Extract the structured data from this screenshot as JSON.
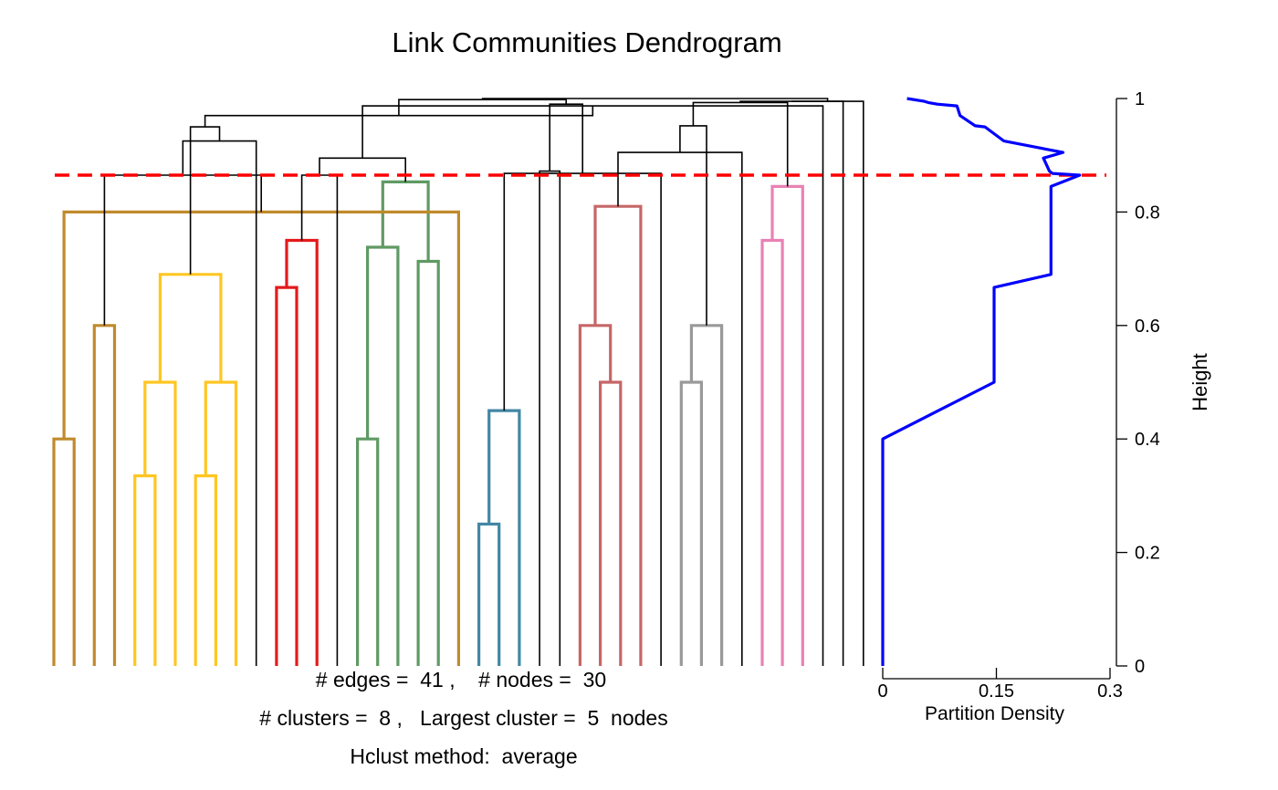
{
  "chart_data": [
    {
      "type": "dendrogram",
      "title": "Link Communities Dendrogram",
      "ylabel": "Height",
      "ylim": [
        0,
        1
      ],
      "yticks": [
        0,
        0.2,
        0.4,
        0.6,
        0.8,
        1
      ],
      "ytick_labels": [
        "0",
        "0.2",
        "0.4",
        "0.6",
        "0.8",
        "1"
      ],
      "cut_height": 0.865,
      "cut_color": "#ff0000",
      "leaf_count": 41,
      "leaf_colors": [
        "#c08a2b",
        "#c08a2b",
        "#c08a2b",
        "#c08a2b",
        "#ffc622",
        "#ffc622",
        "#ffc622",
        "#ffc622",
        "#ffc622",
        "#ffc622",
        "#000000",
        "#e41a1c",
        "#e41a1c",
        "#e41a1c",
        "#000000",
        "#5f9a63",
        "#5f9a63",
        "#5f9a63",
        "#5f9a63",
        "#000000",
        "#000000",
        "#4287a5",
        "#4287a5",
        "#4287a5",
        "#000000",
        "#000000",
        "#c76666",
        "#c76666",
        "#c76666",
        "#000000",
        "#999999",
        "#999999",
        "#999999",
        "#000000",
        "#e882b4",
        "#e882b4",
        "#e882b4",
        "#000000",
        "#000000",
        "#000000",
        "#000000"
      ],
      "merges": [
        [
          0,
          1,
          0.4,
          "#c08a2b"
        ],
        [
          4,
          5,
          0.335,
          "#ffc622"
        ],
        [
          7,
          8,
          0.335,
          "#ffc622"
        ],
        [
          2,
          3,
          0.6,
          "#c08a2b"
        ],
        [
          9,
          "c2",
          0.5,
          "#ffc622"
        ],
        [
          6,
          "c1",
          0.5,
          "#ffc622"
        ],
        [
          "c5",
          "c4",
          0.69,
          "#ffc622"
        ],
        [
          11,
          12,
          0.667,
          "#e41a1c"
        ],
        [
          "c7",
          13,
          0.75,
          "#e41a1c"
        ],
        [
          15,
          16,
          0.4,
          "#5f9a63"
        ],
        [
          "c9",
          17,
          0.738,
          "#5f9a63"
        ],
        [
          18,
          19,
          0.713,
          "#5f9a63"
        ],
        [
          "c10",
          "c11",
          0.853,
          "#5f9a63"
        ],
        [
          "c0",
          20,
          0.8,
          "#c08a2b"
        ],
        [
          21,
          22,
          0.25,
          "#4287a5"
        ],
        [
          "c14",
          23,
          0.45,
          "#4287a5"
        ],
        [
          27,
          28,
          0.5,
          "#c76666"
        ],
        [
          26,
          "c16",
          0.6,
          "#c76666"
        ],
        [
          "c17",
          29,
          0.81,
          "#c76666"
        ],
        [
          31,
          32,
          0.5,
          "#999999"
        ],
        [
          "c19",
          33,
          0.6,
          "#999999"
        ],
        [
          35,
          36,
          0.75,
          "#e882b4"
        ],
        [
          "c21",
          37,
          0.845,
          "#e882b4"
        ],
        [
          "c13",
          "c3",
          0.865,
          "#000000"
        ],
        [
          "c8",
          14,
          0.865,
          "#000000"
        ],
        [
          "c23",
          10,
          0.925,
          "#000000"
        ],
        [
          "c24",
          "c12",
          0.895,
          "#000000"
        ],
        [
          24,
          25,
          0.872,
          "#000000"
        ],
        [
          "c15",
          30,
          0.868,
          "#000000"
        ],
        [
          "c18",
          34,
          0.905,
          "#000000"
        ],
        [
          "c26",
          38,
          0.987,
          "#000000"
        ],
        [
          "c25",
          "c6",
          0.95,
          "#000000"
        ],
        [
          "c31",
          "c30",
          0.97,
          "#000000"
        ],
        [
          "c27",
          "c28",
          0.99,
          "#000000"
        ],
        [
          "c29",
          "c20",
          0.952,
          "#000000"
        ],
        [
          "c34",
          "c22",
          0.993,
          "#000000"
        ],
        [
          "c35",
          39,
          0.995,
          "#000000"
        ],
        [
          "c36",
          40,
          0.995,
          "#000000"
        ],
        [
          "c32",
          "c33",
          0.998,
          "#000000"
        ],
        [
          "c38",
          "c37",
          1.0,
          "#000000"
        ]
      ]
    },
    {
      "type": "line",
      "xlabel": "Partition Density",
      "xlim": [
        0,
        0.3
      ],
      "xticks": [
        0,
        0.15,
        0.3
      ],
      "xtick_labels": [
        "0",
        "0.15",
        "0.3"
      ],
      "color": "#0000ff",
      "series": [
        {
          "x": [
            0,
            0,
            0,
            0.147,
            0.147,
            0.222,
            0.222,
            0.222,
            0.26,
            0.224,
            0.22,
            0.212,
            0.238,
            0.16,
            0.135,
            0.122,
            0.102,
            0.098,
            0.072,
            0.06,
            0.055,
            0.032
          ],
          "y": [
            0,
            0.2,
            0.4,
            0.5,
            0.667,
            0.69,
            0.8,
            0.845,
            0.865,
            0.868,
            0.872,
            0.895,
            0.905,
            0.925,
            0.95,
            0.952,
            0.97,
            0.987,
            0.99,
            0.993,
            0.995,
            1.0
          ]
        }
      ]
    }
  ],
  "info": {
    "line1": "# edges =  41 ,    # nodes =  30",
    "line2": "# clusters =  8 ,   Largest cluster =  5  nodes",
    "line3": "Hclust method:  average"
  }
}
